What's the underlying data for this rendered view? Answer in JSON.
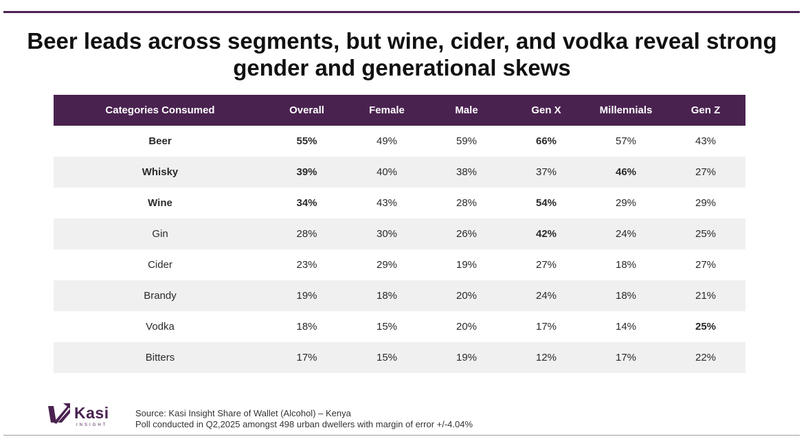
{
  "title": "Beer leads across segments, but wine, cider, and vodka reveal strong gender and generational skews",
  "chart_data": {
    "type": "table",
    "title": "Beer leads across segments, but wine, cider, and vodka reveal strong gender and generational skews",
    "columns": [
      "Categories Consumed",
      "Overall",
      "Female",
      "Male",
      "Gen X",
      "Millennials",
      "Gen Z"
    ],
    "rows": [
      {
        "category": "Beer",
        "values": [
          "55%",
          "49%",
          "59%",
          "66%",
          "57%",
          "43%"
        ],
        "bold": true,
        "highlight": [
          3
        ]
      },
      {
        "category": "Whisky",
        "values": [
          "39%",
          "40%",
          "38%",
          "37%",
          "46%",
          "27%"
        ],
        "bold": true,
        "highlight": [
          4
        ]
      },
      {
        "category": "Wine",
        "values": [
          "34%",
          "43%",
          "28%",
          "54%",
          "29%",
          "29%"
        ],
        "bold": true,
        "highlight": [
          3
        ]
      },
      {
        "category": "Gin",
        "values": [
          "28%",
          "30%",
          "26%",
          "42%",
          "24%",
          "25%"
        ],
        "bold": false,
        "highlight": [
          3
        ]
      },
      {
        "category": "Cider",
        "values": [
          "23%",
          "29%",
          "19%",
          "27%",
          "18%",
          "27%"
        ],
        "bold": false,
        "highlight": []
      },
      {
        "category": "Brandy",
        "values": [
          "19%",
          "18%",
          "20%",
          "24%",
          "18%",
          "21%"
        ],
        "bold": false,
        "highlight": []
      },
      {
        "category": "Vodka",
        "values": [
          "18%",
          "15%",
          "20%",
          "17%",
          "14%",
          "25%"
        ],
        "bold": false,
        "highlight": [
          5
        ]
      },
      {
        "category": "Bitters",
        "values": [
          "17%",
          "15%",
          "19%",
          "12%",
          "17%",
          "22%"
        ],
        "bold": false,
        "highlight": []
      }
    ]
  },
  "colors": {
    "header_bg": "#4a2250",
    "highlight": "#1aa34a",
    "stripe": "#f0f0f0"
  },
  "logo": {
    "word": "Kasi",
    "sub": "INSIGHT",
    "icon": "kasi-arrow-logo-icon"
  },
  "source": {
    "line1": "Source: Kasi Insight Share of Wallet (Alcohol) – Kenya",
    "line2": "Poll conducted in Q2,2025 amongst  498 urban dwellers with margin of error +/-4.04%"
  }
}
